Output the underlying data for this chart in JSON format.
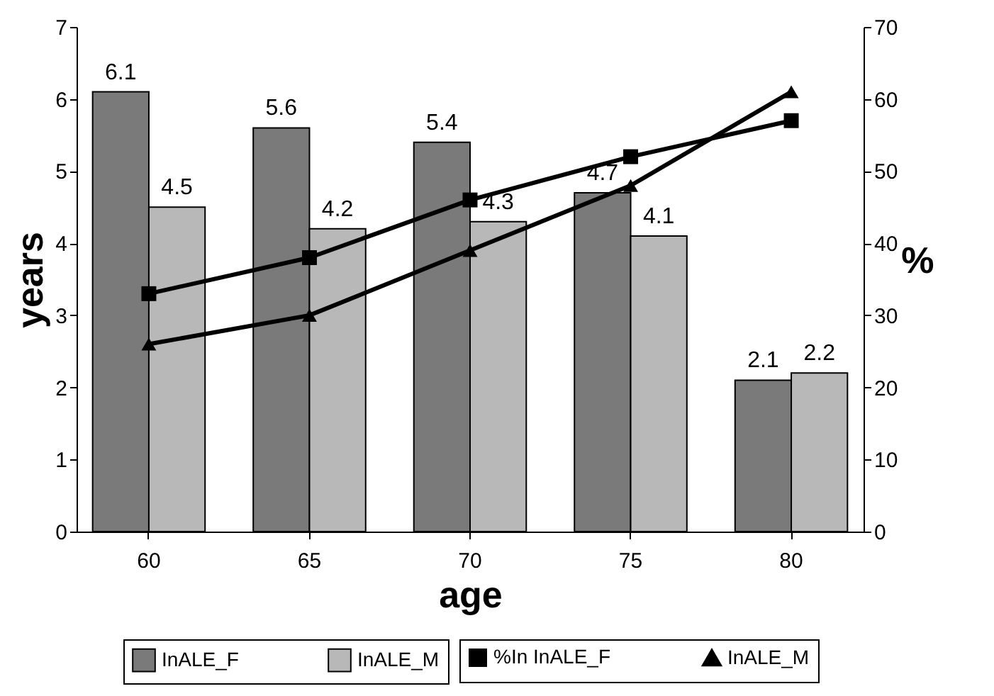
{
  "chart_data": {
    "type": "bar",
    "xlabel": "age",
    "ylabel": "years",
    "y2label": "%",
    "categories": [
      "60",
      "65",
      "70",
      "75",
      "80"
    ],
    "series": [
      {
        "name": "InALE_F",
        "color": "#7a7a7a",
        "values": [
          6.1,
          5.6,
          5.4,
          4.7,
          2.1
        ],
        "value_labels": [
          "6.1",
          "5.6",
          "5.4",
          "4.7",
          "2.1"
        ]
      },
      {
        "name": "InALE_M",
        "color": "#b8b8b8",
        "values": [
          4.5,
          4.2,
          4.3,
          4.1,
          2.2
        ],
        "value_labels": [
          "4.5",
          "4.2",
          "4.3",
          "4.1",
          "2.2"
        ]
      },
      {
        "name": "%In InALE_F",
        "type": "line",
        "axis": "y2",
        "color": "#000000",
        "marker": "square",
        "values": [
          33,
          38,
          46,
          52,
          57
        ]
      },
      {
        "name": "InALE_M",
        "type": "line",
        "axis": "y2",
        "color": "#000000",
        "marker": "triangle",
        "values": [
          26,
          30,
          39,
          48,
          61
        ]
      }
    ],
    "ylim": [
      0,
      7
    ],
    "yticks": [
      0,
      1,
      2,
      3,
      4,
      5,
      6,
      7
    ],
    "y2lim": [
      0,
      70
    ],
    "y2ticks": [
      0,
      10,
      20,
      30,
      40,
      50,
      60,
      70
    ],
    "grid": false,
    "legend": "bottom"
  }
}
